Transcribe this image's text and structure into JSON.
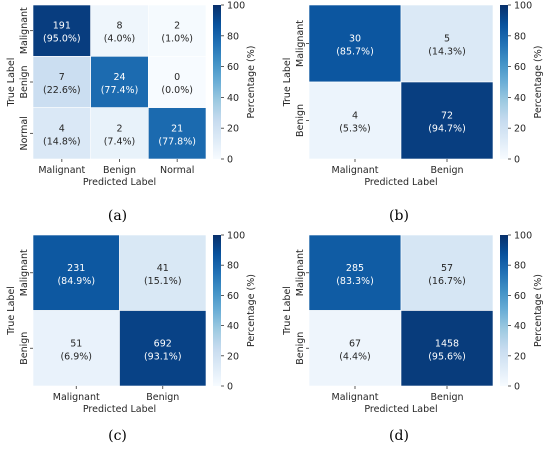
{
  "colorbar": {
    "label": "Percentage (%)",
    "ticks": [
      0,
      20,
      40,
      60,
      80,
      100
    ],
    "colors": [
      "#f7fbff",
      "#deebf7",
      "#c6dbef",
      "#9ecae1",
      "#6baed6",
      "#4292c6",
      "#2171b5",
      "#08519c",
      "#08306b"
    ]
  },
  "chart_data": [
    {
      "type": "heatmap",
      "caption": "(a)",
      "xlabel": "Predicted Label",
      "ylabel": "True Label",
      "x_categories": [
        "Malignant",
        "Benign",
        "Normal"
      ],
      "y_categories": [
        "Malignant",
        "Benign",
        "Normal"
      ],
      "counts": [
        [
          191,
          8,
          2
        ],
        [
          7,
          24,
          0
        ],
        [
          4,
          2,
          21
        ]
      ],
      "percentages": [
        [
          "(95.0%)",
          "(4.0%)",
          "(1.0%)"
        ],
        [
          "(22.6%)",
          "(77.4%)",
          "(0.0%)"
        ],
        [
          "(14.8%)",
          "(7.4%)",
          "(77.8%)"
        ]
      ],
      "values": [
        [
          95.0,
          4.0,
          1.0
        ],
        [
          22.6,
          77.4,
          0.0
        ],
        [
          14.8,
          7.4,
          77.8
        ]
      ],
      "zlim": [
        0,
        100
      ]
    },
    {
      "type": "heatmap",
      "caption": "(b)",
      "xlabel": "Predicted Label",
      "ylabel": "True Label",
      "x_categories": [
        "Malignant",
        "Benign"
      ],
      "y_categories": [
        "Malignant",
        "Benign"
      ],
      "counts": [
        [
          30,
          5
        ],
        [
          4,
          72
        ]
      ],
      "percentages": [
        [
          "(85.7%)",
          "(14.3%)"
        ],
        [
          "(5.3%)",
          "(94.7%)"
        ]
      ],
      "values": [
        [
          85.7,
          14.3
        ],
        [
          5.3,
          94.7
        ]
      ],
      "zlim": [
        0,
        100
      ]
    },
    {
      "type": "heatmap",
      "caption": "(c)",
      "xlabel": "Predicted Label",
      "ylabel": "True Label",
      "x_categories": [
        "Malignant",
        "Benign"
      ],
      "y_categories": [
        "Malignant",
        "Benign"
      ],
      "counts": [
        [
          231,
          41
        ],
        [
          51,
          692
        ]
      ],
      "percentages": [
        [
          "(84.9%)",
          "(15.1%)"
        ],
        [
          "(6.9%)",
          "(93.1%)"
        ]
      ],
      "values": [
        [
          84.9,
          15.1
        ],
        [
          6.9,
          93.1
        ]
      ],
      "zlim": [
        0,
        100
      ]
    },
    {
      "type": "heatmap",
      "caption": "(d)",
      "xlabel": "Predicted Label",
      "ylabel": "True Label",
      "x_categories": [
        "Malignant",
        "Benign"
      ],
      "y_categories": [
        "Malignant",
        "Benign"
      ],
      "counts": [
        [
          285,
          57
        ],
        [
          67,
          1458
        ]
      ],
      "percentages": [
        [
          "(83.3%)",
          "(16.7%)"
        ],
        [
          "(4.4%)",
          "(95.6%)"
        ]
      ],
      "values": [
        [
          83.3,
          16.7
        ],
        [
          4.4,
          95.6
        ]
      ],
      "zlim": [
        0,
        100
      ]
    }
  ]
}
